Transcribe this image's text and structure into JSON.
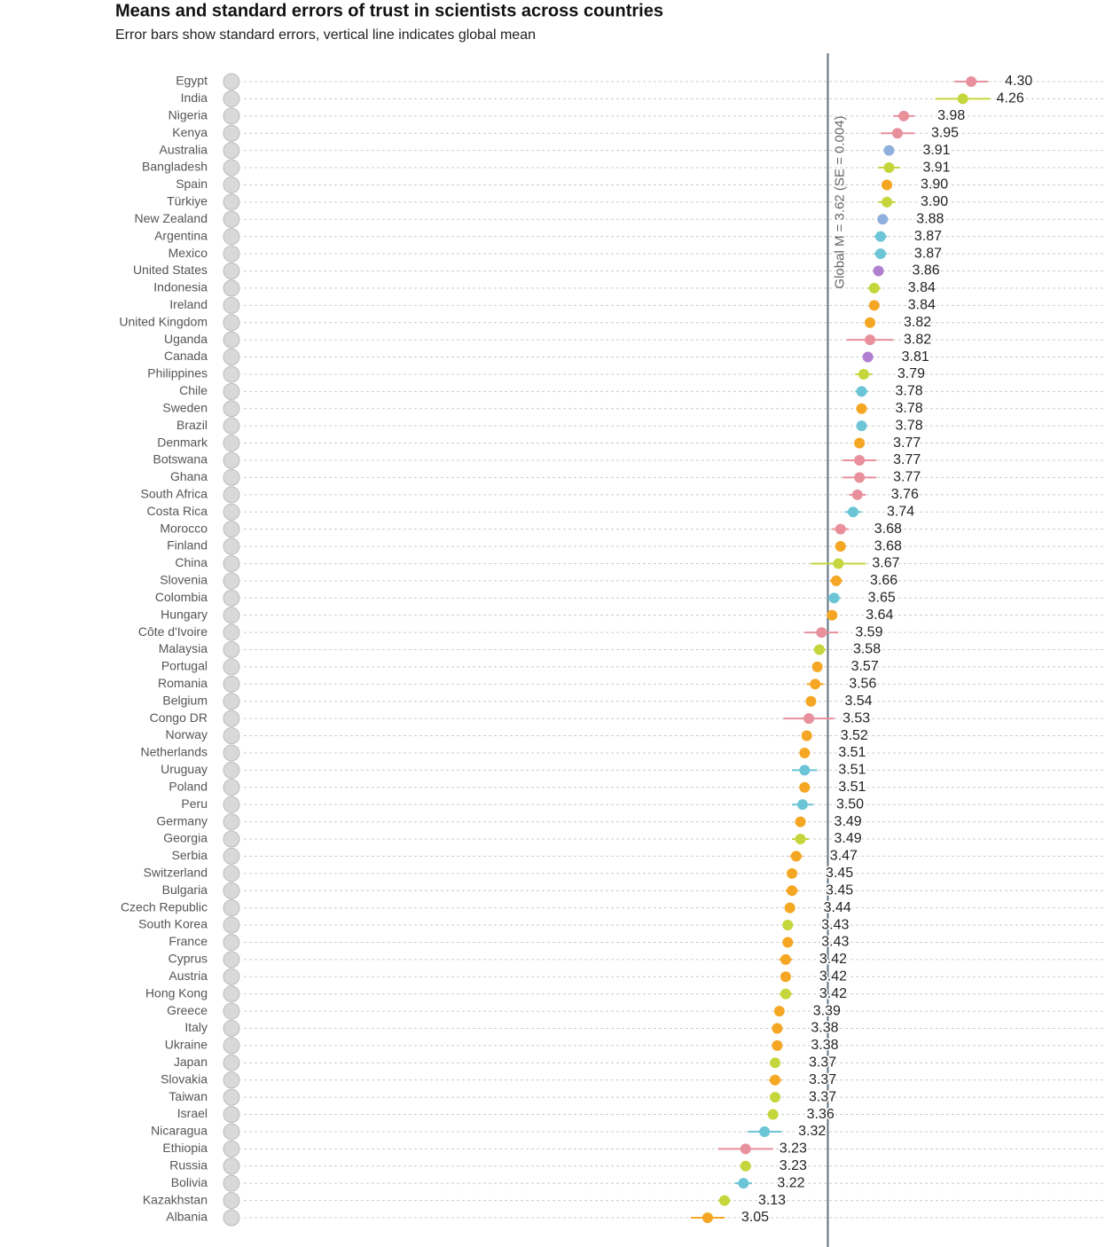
{
  "chart_data": {
    "type": "dot_error",
    "title": "Means and standard errors of trust in scientists across countries",
    "subtitle": "Error bars show standard errors, vertical line indicates global mean",
    "annotation": "Global M = 3.62 (SE = 0.004)",
    "global_mean": 3.62,
    "xlim": [
      0.83,
      4.93
    ],
    "categories": [
      "Egypt",
      "India",
      "Nigeria",
      "Kenya",
      "Australia",
      "Bangladesh",
      "Spain",
      "Türkiye",
      "New Zealand",
      "Argentina",
      "Mexico",
      "United States",
      "Indonesia",
      "Ireland",
      "United Kingdom",
      "Uganda",
      "Canada",
      "Philippines",
      "Chile",
      "Sweden",
      "Brazil",
      "Denmark",
      "Botswana",
      "Ghana",
      "South Africa",
      "Costa Rica",
      "Morocco",
      "Finland",
      "China",
      "Slovenia",
      "Colombia",
      "Hungary",
      "Côte d'Ivoire",
      "Malaysia",
      "Portugal",
      "Romania",
      "Belgium",
      "Congo DR",
      "Norway",
      "Netherlands",
      "Uruguay",
      "Poland",
      "Peru",
      "Germany",
      "Georgia",
      "Serbia",
      "Switzerland",
      "Bulgaria",
      "Czech Republic",
      "South Korea",
      "France",
      "Cyprus",
      "Austria",
      "Hong Kong",
      "Greece",
      "Italy",
      "Ukraine",
      "Japan",
      "Slovakia",
      "Taiwan",
      "Israel",
      "Nicaragua",
      "Ethiopia",
      "Russia",
      "Bolivia",
      "Kazakhstan",
      "Albania"
    ],
    "values": [
      4.3,
      4.26,
      3.98,
      3.95,
      3.91,
      3.91,
      3.9,
      3.9,
      3.88,
      3.87,
      3.87,
      3.86,
      3.84,
      3.84,
      3.82,
      3.82,
      3.81,
      3.79,
      3.78,
      3.78,
      3.78,
      3.77,
      3.77,
      3.77,
      3.76,
      3.74,
      3.68,
      3.68,
      3.67,
      3.66,
      3.65,
      3.64,
      3.59,
      3.58,
      3.57,
      3.56,
      3.54,
      3.53,
      3.52,
      3.51,
      3.51,
      3.51,
      3.5,
      3.49,
      3.49,
      3.47,
      3.45,
      3.45,
      3.44,
      3.43,
      3.43,
      3.42,
      3.42,
      3.42,
      3.39,
      3.38,
      3.38,
      3.37,
      3.37,
      3.37,
      3.36,
      3.32,
      3.23,
      3.23,
      3.22,
      3.13,
      3.05
    ],
    "value_labels": [
      "4.30",
      "4.26",
      "3.98",
      "3.95",
      "3.91",
      "3.91",
      "3.90",
      "3.90",
      "3.88",
      "3.87",
      "3.87",
      "3.86",
      "3.84",
      "3.84",
      "3.82",
      "3.82",
      "3.81",
      "3.79",
      "3.78",
      "3.78",
      "3.78",
      "3.77",
      "3.77",
      "3.77",
      "3.76",
      "3.74",
      "3.68",
      "3.68",
      "3.67",
      "3.66",
      "3.65",
      "3.64",
      "3.59",
      "3.58",
      "3.57",
      "3.56",
      "3.54",
      "3.53",
      "3.52",
      "3.51",
      "3.51",
      "3.51",
      "3.50",
      "3.49",
      "3.49",
      "3.47",
      "3.45",
      "3.45",
      "3.44",
      "3.43",
      "3.43",
      "3.42",
      "3.42",
      "3.42",
      "3.39",
      "3.38",
      "3.38",
      "3.37",
      "3.37",
      "3.37",
      "3.36",
      "3.32",
      "3.23",
      "3.23",
      "3.22",
      "3.13",
      "3.05"
    ],
    "errors": [
      0.08,
      0.13,
      0.05,
      0.08,
      0.02,
      0.05,
      0.02,
      0.04,
      0.02,
      0.03,
      0.03,
      0.02,
      0.03,
      0.02,
      0.02,
      0.11,
      0.02,
      0.04,
      0.03,
      0.02,
      0.02,
      0.02,
      0.08,
      0.08,
      0.04,
      0.04,
      0.04,
      0.02,
      0.13,
      0.03,
      0.03,
      0.02,
      0.08,
      0.03,
      0.02,
      0.04,
      0.02,
      0.12,
      0.02,
      0.02,
      0.06,
      0.02,
      0.05,
      0.02,
      0.04,
      0.03,
      0.02,
      0.03,
      0.02,
      0.02,
      0.02,
      0.03,
      0.02,
      0.03,
      0.02,
      0.02,
      0.02,
      0.02,
      0.03,
      0.02,
      0.02,
      0.08,
      0.13,
      0.02,
      0.04,
      0.03,
      0.08
    ],
    "colors": [
      "#e8909c",
      "#c5d63c",
      "#e8909c",
      "#e8909c",
      "#8fb0dc",
      "#c5d63c",
      "#f5a623",
      "#c5d63c",
      "#8fb0dc",
      "#6cc5d6",
      "#6cc5d6",
      "#b07fd0",
      "#c5d63c",
      "#f5a623",
      "#f5a623",
      "#e8909c",
      "#b07fd0",
      "#c5d63c",
      "#6cc5d6",
      "#f5a623",
      "#6cc5d6",
      "#f5a623",
      "#e8909c",
      "#e8909c",
      "#e8909c",
      "#6cc5d6",
      "#e8909c",
      "#f5a623",
      "#c5d63c",
      "#f5a623",
      "#6cc5d6",
      "#f5a623",
      "#e8909c",
      "#c5d63c",
      "#f5a623",
      "#f5a623",
      "#f5a623",
      "#e8909c",
      "#f5a623",
      "#f5a623",
      "#6cc5d6",
      "#f5a623",
      "#6cc5d6",
      "#f5a623",
      "#c5d63c",
      "#f5a623",
      "#f5a623",
      "#f5a623",
      "#f5a623",
      "#c5d63c",
      "#f5a623",
      "#f5a623",
      "#f5a623",
      "#c5d63c",
      "#f5a623",
      "#f5a623",
      "#f5a623",
      "#c5d63c",
      "#f5a623",
      "#c5d63c",
      "#c5d63c",
      "#6cc5d6",
      "#e8909c",
      "#c5d63c",
      "#6cc5d6",
      "#c5d63c",
      "#f5a623"
    ]
  }
}
